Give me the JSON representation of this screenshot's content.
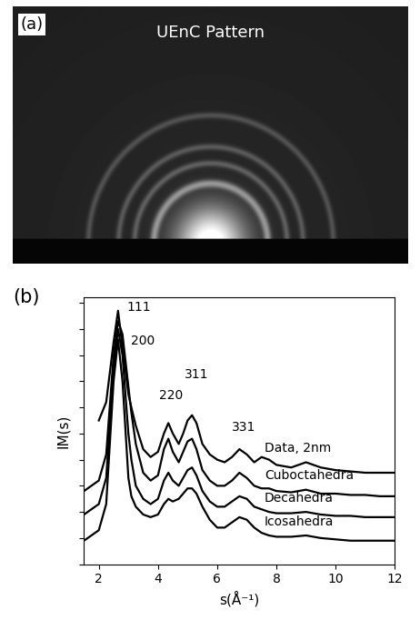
{
  "chart_data": [
    {
      "type": "image",
      "title": "UEnC Pattern",
      "annotations": [
        {
          "text": "(a)"
        }
      ]
    },
    {
      "type": "line",
      "annotations": [
        {
          "text": "(b)"
        },
        {
          "text": "111",
          "x": 2.95,
          "y": 9.6
        },
        {
          "text": "200",
          "x": 3.1,
          "y": 8.3
        },
        {
          "text": "220",
          "x": 4.05,
          "y": 6.2
        },
        {
          "text": "311",
          "x": 4.9,
          "y": 7.0
        },
        {
          "text": "331",
          "x": 6.5,
          "y": 5.0
        }
      ],
      "xlabel": "s(Å⁻¹)",
      "ylabel": "IM(s)",
      "x": [
        1.5,
        1.75,
        2.0,
        2.25,
        2.5,
        2.65,
        2.8,
        3.0,
        3.1,
        3.25,
        3.5,
        3.75,
        4.0,
        4.2,
        4.35,
        4.5,
        4.7,
        4.85,
        5.0,
        5.15,
        5.3,
        5.5,
        5.75,
        6.0,
        6.25,
        6.5,
        6.75,
        7.0,
        7.25,
        7.5,
        7.75,
        8.0,
        8.5,
        9.0,
        9.5,
        10.0,
        10.5,
        11.0,
        11.5,
        12.0
      ],
      "series": [
        {
          "name": "Data, 2nm",
          "color": "#000000",
          "values": [
            null,
            null,
            5.5,
            6.2,
            8.5,
            9.7,
            8.3,
            6.5,
            6.0,
            5.3,
            4.4,
            4.1,
            4.3,
            5.0,
            5.4,
            5.0,
            4.6,
            5.0,
            5.5,
            5.7,
            5.4,
            4.6,
            4.2,
            4.0,
            3.9,
            4.1,
            4.4,
            4.2,
            3.9,
            4.1,
            4.0,
            3.8,
            3.7,
            3.9,
            3.7,
            3.6,
            3.55,
            3.5,
            3.5,
            3.5
          ]
        },
        {
          "name": "Cuboctahedra",
          "color": "#000000",
          "values": [
            2.8,
            3.0,
            3.2,
            4.2,
            8.0,
            9.3,
            8.8,
            6.8,
            5.8,
            4.6,
            3.5,
            3.2,
            3.4,
            4.4,
            4.8,
            4.3,
            3.9,
            4.3,
            4.7,
            4.8,
            4.4,
            3.6,
            3.2,
            3.0,
            3.0,
            3.2,
            3.5,
            3.3,
            3.0,
            2.9,
            2.9,
            2.8,
            2.75,
            2.85,
            2.7,
            2.7,
            2.65,
            2.65,
            2.6,
            2.6
          ]
        },
        {
          "name": "Decahedra",
          "color": "#000000",
          "values": [
            1.9,
            2.1,
            2.3,
            3.3,
            7.5,
            9.0,
            8.0,
            5.0,
            4.0,
            3.0,
            2.5,
            2.3,
            2.5,
            3.2,
            3.5,
            3.2,
            3.0,
            3.3,
            3.6,
            3.7,
            3.4,
            2.8,
            2.4,
            2.2,
            2.2,
            2.4,
            2.6,
            2.5,
            2.2,
            2.1,
            2.0,
            1.95,
            1.95,
            2.0,
            1.9,
            1.85,
            1.85,
            1.8,
            1.8,
            1.8
          ]
        },
        {
          "name": "Icosahedra",
          "color": "#000000",
          "values": [
            0.9,
            1.1,
            1.3,
            2.3,
            7.0,
            8.6,
            7.0,
            3.3,
            2.6,
            2.2,
            1.9,
            1.8,
            1.9,
            2.3,
            2.5,
            2.4,
            2.5,
            2.7,
            2.9,
            2.9,
            2.7,
            2.2,
            1.7,
            1.4,
            1.4,
            1.6,
            1.8,
            1.7,
            1.4,
            1.2,
            1.1,
            1.05,
            1.05,
            1.1,
            1.0,
            0.95,
            0.9,
            0.9,
            0.9,
            0.9
          ]
        }
      ],
      "xlim": [
        1.5,
        12
      ],
      "xticks": [
        2,
        4,
        6,
        8,
        10,
        12
      ],
      "ylim": [
        0,
        10.2
      ],
      "yticks": [
        0,
        1,
        2,
        3,
        4,
        5,
        6,
        7,
        8,
        9,
        10
      ],
      "tick_labels": "x"
    }
  ]
}
